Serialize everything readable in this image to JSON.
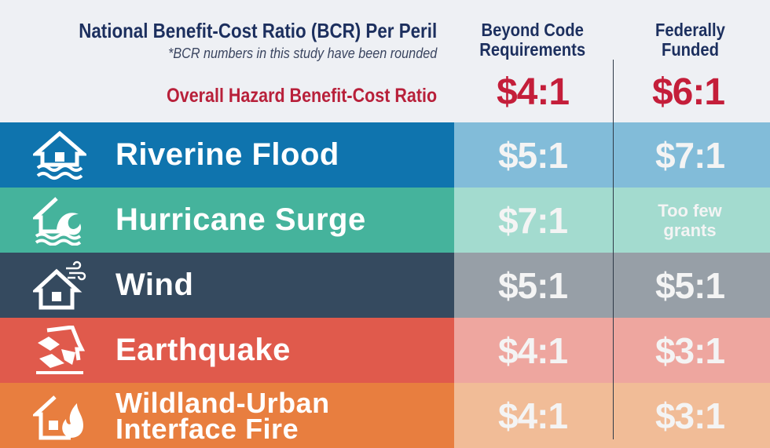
{
  "chart_data": {
    "type": "table",
    "title": "National Benefit-Cost Ratio (BCR) Per Peril",
    "subtitle": "*BCR numbers in this study have been rounded",
    "columns": [
      "Beyond Code Requirements",
      "Federally Funded"
    ],
    "overall": {
      "label": "Overall Hazard Benefit-Cost Ratio",
      "values": [
        "$4:1",
        "$6:1"
      ]
    },
    "rows": [
      {
        "label": "Riverine Flood",
        "icon": "flooded-house-icon",
        "color": "#0f74ae",
        "value_bg": "#82bcd9",
        "values": [
          "$5:1",
          "$7:1"
        ]
      },
      {
        "label": "Hurricane Surge",
        "icon": "surge-wave-house-icon",
        "color": "#45b39c",
        "value_bg": "#a3dbcf",
        "values": [
          "$7:1",
          "Too few grants"
        ]
      },
      {
        "label": "Wind",
        "icon": "wind-house-icon",
        "color": "#354a5f",
        "value_bg": "#979fa7",
        "values": [
          "$5:1",
          "$5:1"
        ]
      },
      {
        "label": "Earthquake",
        "icon": "earthquake-house-icon",
        "color": "#e05a4c",
        "value_bg": "#eea69f",
        "values": [
          "$4:1",
          "$3:1"
        ]
      },
      {
        "label": "Wildland-Urban Interface Fire",
        "label_lines": [
          "Wildland-Urban",
          "Interface Fire"
        ],
        "icon": "fire-house-icon",
        "color": "#e87e3f",
        "value_bg": "#f1bc97",
        "values": [
          "$4:1",
          "$3:1"
        ]
      }
    ]
  }
}
